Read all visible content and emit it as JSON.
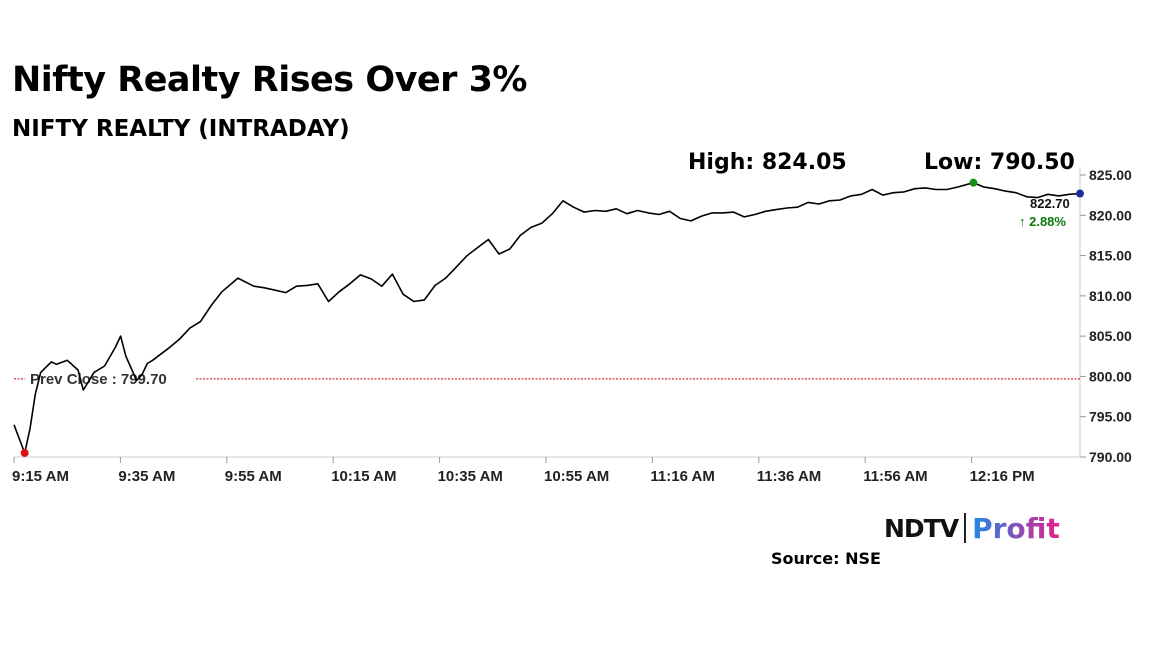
{
  "headline": "Nifty Realty Rises Over 3%",
  "subheadline": "NIFTY REALTY (INTRADAY)",
  "stats": {
    "high_label": "High: 824.05",
    "low_label": "Low: 790.50"
  },
  "brand": {
    "primary": "NDTV",
    "secondary": "Profit"
  },
  "source": "Source: NSE",
  "colors": {
    "line": "#000000",
    "prev_close_line": "#c00000",
    "high_marker": "#1a8c1a",
    "low_marker": "#e01010",
    "last_marker": "#1f2f9e",
    "change_text": "#0a7a0a",
    "profit_gradient": [
      "#1e88e5",
      "#e91e8c"
    ]
  },
  "chart_data": {
    "type": "line",
    "title": "NIFTY REALTY (INTRADAY)",
    "x_tick_labels": [
      "9:15 AM",
      "9:35 AM",
      "9:55 AM",
      "10:15 AM",
      "10:35 AM",
      "10:55 AM",
      "11:16 AM",
      "11:36 AM",
      "11:56 AM",
      "12:16 PM"
    ],
    "x_range_minutes": [
      555,
      755
    ],
    "y_tick_labels": [
      "790.00",
      "795.00",
      "800.00",
      "805.00",
      "810.00",
      "815.00",
      "820.00",
      "825.00"
    ],
    "ylim": [
      790,
      825
    ],
    "prev_close": {
      "label": "Prev Close : 799.70",
      "value": 799.7
    },
    "last": {
      "value_label": "822.70",
      "change_label": "↑ 2.88%",
      "value": 822.7
    },
    "high_point": {
      "time_min": 735,
      "value": 824.05
    },
    "low_point": {
      "time_min": 557,
      "value": 790.5
    },
    "series": [
      {
        "x_min": [
          555,
          557,
          558,
          559,
          560,
          562,
          563,
          565,
          567,
          568,
          570,
          572,
          574,
          575,
          576,
          578,
          579,
          580,
          581,
          584,
          586,
          588,
          590,
          592,
          594,
          597,
          600,
          602,
          604,
          606,
          608,
          610,
          612,
          614,
          616,
          618,
          620,
          622,
          624,
          626,
          628,
          630,
          632,
          634,
          636,
          638,
          640,
          642,
          644,
          646,
          648,
          650,
          652,
          654,
          656,
          658,
          660,
          662,
          664,
          666,
          668,
          670,
          672,
          674,
          676,
          678,
          680,
          682,
          684,
          686,
          688,
          690,
          692,
          694,
          696,
          698,
          700,
          702,
          704,
          706,
          708,
          710,
          712,
          714,
          716,
          718,
          720,
          722,
          724,
          726,
          728,
          730,
          732,
          735,
          737,
          739,
          741,
          743,
          745,
          747,
          749,
          751,
          753,
          755
        ],
        "values": [
          794,
          790.5,
          793.5,
          797.8,
          800.5,
          801.8,
          801.5,
          802,
          800.8,
          798.3,
          800.5,
          801.3,
          803.6,
          805,
          802.5,
          799.5,
          800.2,
          801.6,
          802,
          803.5,
          804.6,
          806,
          806.8,
          808.8,
          810.5,
          812.2,
          811.2,
          811,
          810.7,
          810.4,
          811.2,
          811.3,
          811.5,
          809.3,
          810.5,
          811.5,
          812.6,
          812.1,
          811.2,
          812.7,
          810.2,
          809.3,
          809.5,
          811.3,
          812.2,
          813.6,
          815,
          816,
          817,
          815.2,
          815.8,
          817.5,
          818.5,
          819,
          820.2,
          821.8,
          821,
          820.4,
          820.6,
          820.5,
          820.8,
          820.2,
          820.6,
          820.3,
          820.1,
          820.5,
          819.6,
          819.3,
          819.9,
          820.3,
          820.3,
          820.4,
          819.8,
          820.1,
          820.5,
          820.7,
          820.9,
          821,
          821.6,
          821.4,
          821.8,
          821.9,
          822.4,
          822.6,
          823.2,
          822.5,
          822.8,
          822.9,
          823.3,
          823.4,
          823.2,
          823.2,
          823.5,
          824.05,
          823.5,
          823.3,
          823,
          822.8,
          822.3,
          822.2,
          822.6,
          822.4,
          822.6,
          822.7
        ]
      }
    ],
    "grid": false,
    "legend": "none"
  }
}
